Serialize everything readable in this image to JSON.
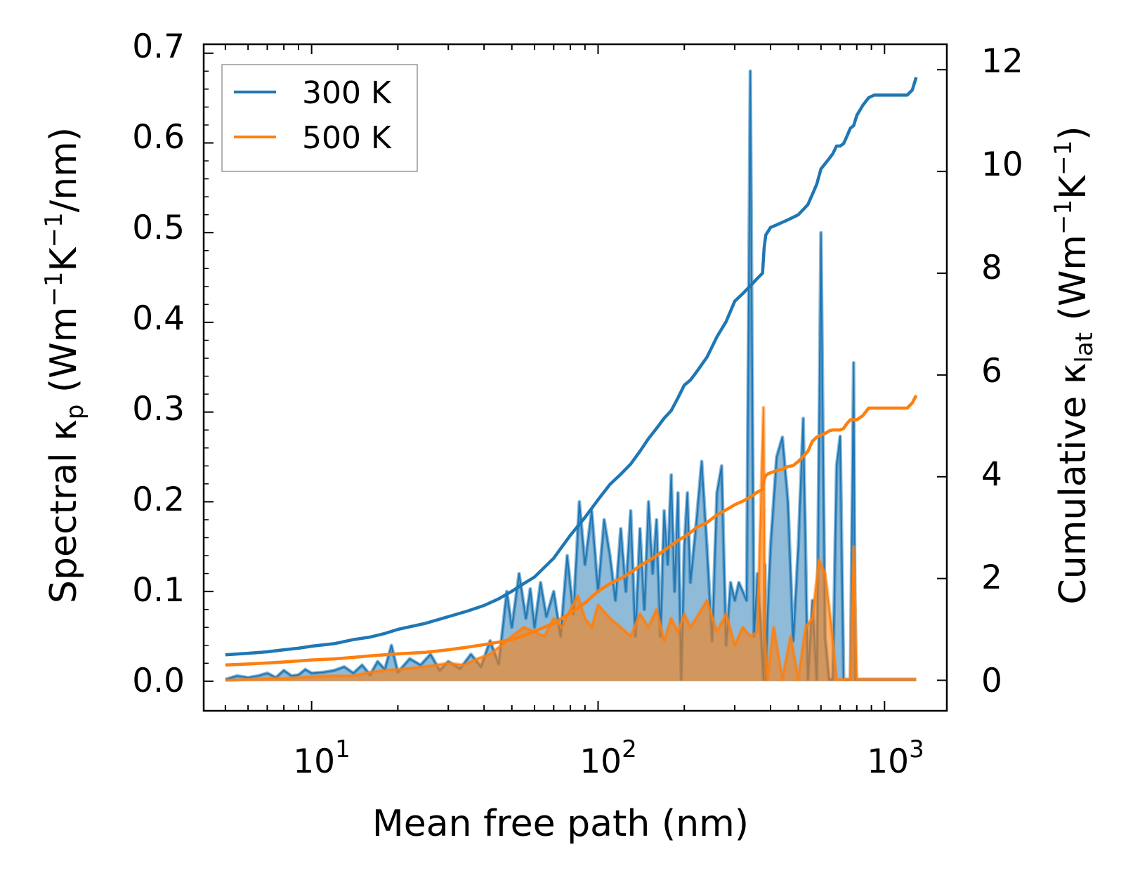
{
  "chart_data": {
    "type": "line",
    "xlabel": "Mean free path (nm)",
    "xscale": "log",
    "xlim": [
      4.2,
      1650
    ],
    "x_ticks": [
      {
        "base": "10",
        "exp": "1",
        "value": 10
      },
      {
        "base": "10",
        "exp": "2",
        "value": 100
      },
      {
        "base": "10",
        "exp": "3",
        "value": 1000
      }
    ],
    "left_axis": {
      "label_parts": {
        "a": "Spectral κ",
        "sub": "p",
        "b": " (Wm",
        "sup1": "−1",
        "c": "K",
        "sup2": "−1",
        "d": "/nm)"
      },
      "ylim": [
        -0.033,
        0.71
      ],
      "ticks": [
        {
          "v": 0.0,
          "t": "0.0"
        },
        {
          "v": 0.1,
          "t": "0.1"
        },
        {
          "v": 0.2,
          "t": "0.2"
        },
        {
          "v": 0.3,
          "t": "0.3"
        },
        {
          "v": 0.4,
          "t": "0.4"
        },
        {
          "v": 0.5,
          "t": "0.5"
        },
        {
          "v": 0.6,
          "t": "0.6"
        },
        {
          "v": 0.7,
          "t": "0.7"
        }
      ]
    },
    "right_axis": {
      "label_parts": {
        "a": "Cumulative κ",
        "sub": "lat",
        "b": " (Wm",
        "sup1": "−1",
        "c": "K",
        "sup2": "−1",
        "d": ")"
      },
      "ylim": [
        -0.6,
        12.5
      ],
      "ticks": [
        {
          "v": 0,
          "t": "0"
        },
        {
          "v": 2,
          "t": "2"
        },
        {
          "v": 4,
          "t": "4"
        },
        {
          "v": 6,
          "t": "6"
        },
        {
          "v": 8,
          "t": "8"
        },
        {
          "v": 10,
          "t": "10"
        },
        {
          "v": 12,
          "t": "12"
        }
      ]
    },
    "legend": {
      "position": "top-left",
      "entries": [
        {
          "label": "300 K",
          "color": "#1f77b4"
        },
        {
          "label": "500 K",
          "color": "#ff7f0e"
        }
      ]
    },
    "colors": {
      "s300": "#1f77b4",
      "s500": "#ff7f0e",
      "fill300": "#1f77b4",
      "fill500": "#ff7f0e"
    },
    "series": [
      {
        "name": "300 K",
        "kind": "spectral",
        "axis": "left",
        "x": [
          5,
          5.5,
          6,
          6.5,
          7,
          7.5,
          8,
          8.5,
          9,
          9.5,
          10,
          11,
          12,
          13,
          14,
          15,
          16,
          17,
          18,
          19,
          20,
          22,
          24,
          26,
          28,
          30,
          33,
          36,
          39,
          42,
          45,
          48,
          50,
          53,
          56,
          58,
          60,
          63,
          66,
          70,
          74,
          78,
          82,
          86,
          90,
          95,
          100,
          105,
          110,
          115,
          120,
          125,
          130,
          135,
          140,
          145,
          150,
          155,
          160,
          165,
          170,
          175,
          180,
          185,
          190,
          195,
          200,
          205,
          210,
          220,
          230,
          240,
          250,
          260,
          270,
          280,
          290,
          300,
          310,
          320,
          330,
          340,
          350,
          360,
          370,
          378,
          382,
          385,
          390,
          400,
          420,
          440,
          460,
          480,
          500,
          520,
          540,
          560,
          580,
          600,
          620,
          640,
          660,
          680,
          700,
          720,
          740,
          760,
          780,
          790,
          800,
          820,
          840,
          860,
          880,
          900,
          920,
          950,
          1000,
          1100,
          1200,
          1270,
          1290
        ],
        "y": [
          0.002,
          0.006,
          0.004,
          0.006,
          0.009,
          0.004,
          0.012,
          0.006,
          0.007,
          0.013,
          0.009,
          0.01,
          0.012,
          0.016,
          0.009,
          0.018,
          0.007,
          0.022,
          0.013,
          0.04,
          0.01,
          0.025,
          0.018,
          0.03,
          0.012,
          0.022,
          0.014,
          0.03,
          0.016,
          0.045,
          0.019,
          0.1,
          0.06,
          0.12,
          0.07,
          0.103,
          0.06,
          0.11,
          0.072,
          0.1,
          0.05,
          0.14,
          0.075,
          0.2,
          0.13,
          0.19,
          0.1,
          0.18,
          0.14,
          0.09,
          0.17,
          0.1,
          0.19,
          0.05,
          0.17,
          0.08,
          0.2,
          0.12,
          0.18,
          0.05,
          0.19,
          0.13,
          0.23,
          0.1,
          0.21,
          0.002,
          0.15,
          0.21,
          0.11,
          0.175,
          0.245,
          0.15,
          0.045,
          0.21,
          0.24,
          0.04,
          0.11,
          0.09,
          0.11,
          0.1,
          0.09,
          0.68,
          0.05,
          0.12,
          0.06,
          0.002,
          0.13,
          0.002,
          0.07,
          0.15,
          0.25,
          0.272,
          0.2,
          0.045,
          0.15,
          0.293,
          0.002,
          0.09,
          0.002,
          0.5,
          0.05,
          0.002,
          0.002,
          0.24,
          0.273,
          0.002,
          0.002,
          0.002,
          0.355,
          0.002,
          0.002,
          0.002,
          0.002,
          0.002,
          0.002,
          0.002,
          0.002,
          0.002,
          0.002,
          0.002,
          0.002,
          0.002,
          0.002
        ]
      },
      {
        "name": "500 K",
        "kind": "spectral",
        "axis": "left",
        "x": [
          5,
          6,
          7,
          8,
          9,
          10,
          12,
          14,
          16,
          18,
          20,
          23,
          26,
          30,
          34,
          38,
          42,
          46,
          50,
          55,
          60,
          65,
          70,
          75,
          80,
          85,
          90,
          95,
          100,
          110,
          120,
          130,
          140,
          150,
          160,
          170,
          180,
          190,
          200,
          210,
          220,
          240,
          260,
          280,
          300,
          320,
          340,
          360,
          378,
          382,
          390,
          410,
          440,
          470,
          500,
          530,
          560,
          590,
          620,
          650,
          680,
          720,
          760,
          780,
          800,
          840,
          880,
          920,
          960,
          1000,
          1100,
          1200,
          1270,
          1290
        ],
        "y": [
          0.001,
          0.002,
          0.003,
          0.003,
          0.004,
          0.005,
          0.006,
          0.006,
          0.01,
          0.012,
          0.013,
          0.015,
          0.017,
          0.02,
          0.018,
          0.025,
          0.03,
          0.04,
          0.05,
          0.06,
          0.055,
          0.05,
          0.07,
          0.06,
          0.08,
          0.095,
          0.07,
          0.06,
          0.085,
          0.07,
          0.06,
          0.05,
          0.075,
          0.06,
          0.08,
          0.045,
          0.07,
          0.055,
          0.075,
          0.06,
          0.07,
          0.09,
          0.055,
          0.075,
          0.04,
          0.06,
          0.05,
          0.055,
          0.305,
          0.05,
          0.002,
          0.06,
          0.002,
          0.05,
          0.002,
          0.06,
          0.07,
          0.135,
          0.12,
          0.065,
          0.002,
          0.002,
          0.002,
          0.15,
          0.002,
          0.002,
          0.002,
          0.002,
          0.002,
          0.002,
          0.002,
          0.002,
          0.002,
          0.002
        ]
      },
      {
        "name": "300 K",
        "kind": "cumulative",
        "axis": "right",
        "x": [
          5,
          6,
          7,
          8,
          9,
          10,
          12,
          14,
          16,
          18,
          20,
          25,
          30,
          35,
          40,
          45,
          50,
          55,
          60,
          70,
          80,
          90,
          100,
          110,
          120,
          130,
          140,
          150,
          160,
          170,
          180,
          190,
          200,
          210,
          220,
          240,
          260,
          280,
          300,
          320,
          340,
          360,
          375,
          380,
          385,
          390,
          400,
          420,
          440,
          460,
          480,
          500,
          520,
          540,
          560,
          580,
          600,
          620,
          640,
          660,
          680,
          700,
          720,
          740,
          760,
          780,
          800,
          840,
          880,
          920,
          960,
          1000,
          1100,
          1200,
          1250,
          1290
        ],
        "y": [
          0.5,
          0.53,
          0.56,
          0.6,
          0.63,
          0.67,
          0.72,
          0.8,
          0.85,
          0.92,
          1.0,
          1.12,
          1.25,
          1.36,
          1.47,
          1.6,
          1.75,
          1.9,
          2.03,
          2.4,
          2.85,
          3.2,
          3.55,
          3.85,
          4.05,
          4.25,
          4.5,
          4.75,
          4.95,
          5.15,
          5.3,
          5.55,
          5.8,
          5.9,
          6.05,
          6.35,
          6.75,
          7.05,
          7.45,
          7.6,
          7.75,
          7.9,
          8.0,
          8.5,
          8.75,
          8.8,
          8.9,
          8.95,
          9.0,
          9.05,
          9.1,
          9.15,
          9.25,
          9.35,
          9.55,
          9.75,
          10.05,
          10.15,
          10.25,
          10.35,
          10.5,
          10.5,
          10.55,
          10.7,
          10.85,
          10.9,
          11.1,
          11.3,
          11.45,
          11.5,
          11.5,
          11.5,
          11.5,
          11.5,
          11.6,
          11.85
        ]
      },
      {
        "name": "500 K",
        "kind": "cumulative",
        "axis": "right",
        "x": [
          5,
          6,
          7,
          8,
          9,
          10,
          12,
          14,
          16,
          18,
          20,
          25,
          30,
          35,
          40,
          45,
          50,
          55,
          60,
          70,
          80,
          90,
          100,
          110,
          120,
          130,
          140,
          150,
          160,
          170,
          180,
          190,
          200,
          210,
          220,
          240,
          260,
          280,
          300,
          320,
          340,
          360,
          375,
          380,
          385,
          390,
          400,
          420,
          440,
          460,
          480,
          500,
          520,
          540,
          560,
          580,
          600,
          620,
          640,
          660,
          680,
          700,
          720,
          740,
          760,
          780,
          800,
          840,
          880,
          920,
          960,
          1000,
          1100,
          1200,
          1250,
          1290
        ],
        "y": [
          0.3,
          0.32,
          0.34,
          0.36,
          0.38,
          0.4,
          0.42,
          0.45,
          0.48,
          0.5,
          0.52,
          0.55,
          0.6,
          0.65,
          0.7,
          0.75,
          0.8,
          0.88,
          0.96,
          1.12,
          1.32,
          1.52,
          1.75,
          1.9,
          2.0,
          2.12,
          2.25,
          2.35,
          2.45,
          2.55,
          2.65,
          2.75,
          2.82,
          2.9,
          3.0,
          3.1,
          3.25,
          3.35,
          3.45,
          3.52,
          3.6,
          3.7,
          3.75,
          3.95,
          4.02,
          4.05,
          4.08,
          4.12,
          4.15,
          4.2,
          4.22,
          4.3,
          4.4,
          4.5,
          4.7,
          4.78,
          4.82,
          4.85,
          4.9,
          4.92,
          4.92,
          4.92,
          4.95,
          5.05,
          5.12,
          5.12,
          5.12,
          5.2,
          5.35,
          5.35,
          5.35,
          5.35,
          5.35,
          5.35,
          5.45,
          5.6
        ]
      }
    ]
  }
}
